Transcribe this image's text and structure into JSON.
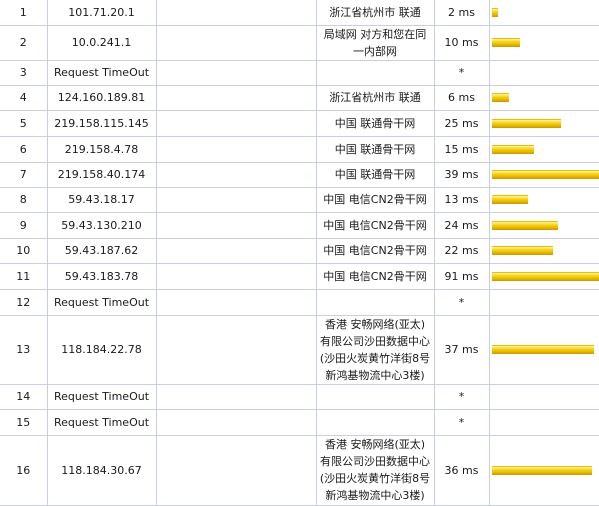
{
  "traceroute": {
    "rows": [
      {
        "hop": "1",
        "ip": "101.71.20.1",
        "host": "",
        "location": "浙江省杭州市 联通",
        "time": "2 ms",
        "time_ms": 2
      },
      {
        "hop": "2",
        "ip": "10.0.241.1",
        "host": "",
        "location": "局域网 对方和您在同一内部网",
        "time": "10 ms",
        "time_ms": 10
      },
      {
        "hop": "3",
        "ip": "Request TimeOut",
        "host": "",
        "location": "",
        "time": "*",
        "time_ms": 0
      },
      {
        "hop": "4",
        "ip": "124.160.189.81",
        "host": "",
        "location": "浙江省杭州市 联通",
        "time": "6 ms",
        "time_ms": 6
      },
      {
        "hop": "5",
        "ip": "219.158.115.145",
        "host": "",
        "location": "中国 联通骨干网",
        "time": "25 ms",
        "time_ms": 25
      },
      {
        "hop": "6",
        "ip": "219.158.4.78",
        "host": "",
        "location": "中国 联通骨干网",
        "time": "15 ms",
        "time_ms": 15
      },
      {
        "hop": "7",
        "ip": "219.158.40.174",
        "host": "",
        "location": "中国 联通骨干网",
        "time": "39 ms",
        "time_ms": 39
      },
      {
        "hop": "8",
        "ip": "59.43.18.17",
        "host": "",
        "location": "中国 电信CN2骨干网",
        "time": "13 ms",
        "time_ms": 13
      },
      {
        "hop": "9",
        "ip": "59.43.130.210",
        "host": "",
        "location": "中国 电信CN2骨干网",
        "time": "24 ms",
        "time_ms": 24
      },
      {
        "hop": "10",
        "ip": "59.43.187.62",
        "host": "",
        "location": "中国 电信CN2骨干网",
        "time": "22 ms",
        "time_ms": 22
      },
      {
        "hop": "11",
        "ip": "59.43.183.78",
        "host": "",
        "location": "中国 电信CN2骨干网",
        "time": "91 ms",
        "time_ms": 91
      },
      {
        "hop": "12",
        "ip": "Request TimeOut",
        "host": "",
        "location": "",
        "time": "*",
        "time_ms": 0
      },
      {
        "hop": "13",
        "ip": "118.184.22.78",
        "host": "",
        "location": "香港 安畅网络(亚太)有限公司沙田数据中心(沙田火炭黄竹洋街8号新鸿基物流中心3楼)",
        "time": "37 ms",
        "time_ms": 37
      },
      {
        "hop": "14",
        "ip": "Request TimeOut",
        "host": "",
        "location": "",
        "time": "*",
        "time_ms": 0
      },
      {
        "hop": "15",
        "ip": "Request TimeOut",
        "host": "",
        "location": "",
        "time": "*",
        "time_ms": 0
      },
      {
        "hop": "16",
        "ip": "118.184.30.67",
        "host": "",
        "location": "香港 安畅网络(亚太)有限公司沙田数据中心(沙田火炭黄竹洋街8号新鸿基物流中心3楼)",
        "time": "36 ms",
        "time_ms": 36
      }
    ]
  },
  "colors": {
    "bar": "#f0c800",
    "grid": "#c9cfe3"
  }
}
